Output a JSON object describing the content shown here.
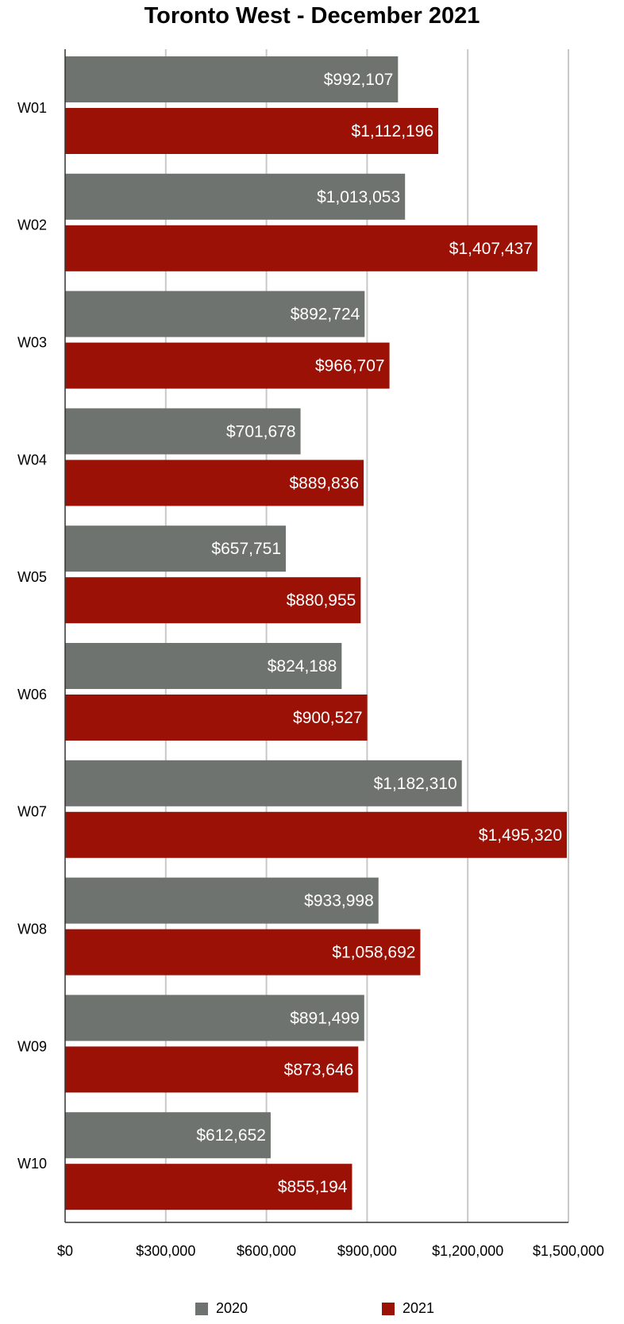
{
  "chart_data": {
    "type": "bar",
    "orientation": "horizontal",
    "title": "Toronto West - December 2021",
    "categories": [
      "W01",
      "W02",
      "W03",
      "W04",
      "W05",
      "W06",
      "W07",
      "W08",
      "W09",
      "W10"
    ],
    "series": [
      {
        "name": "2020",
        "color": "#6f7370",
        "values": [
          992107,
          1013053,
          892724,
          701678,
          657751,
          824188,
          1182310,
          933998,
          891499,
          612652
        ],
        "labels": [
          "$992,107",
          "$1,013,053",
          "$892,724",
          "$701,678",
          "$657,751",
          "$824,188",
          "$1,182,310",
          "$933,998",
          "$891,499",
          "$612,652"
        ]
      },
      {
        "name": "2021",
        "color": "#9b1106",
        "values": [
          1112196,
          1407437,
          966707,
          889836,
          880955,
          900527,
          1495320,
          1058692,
          873646,
          855194
        ],
        "labels": [
          "$1,112,196",
          "$1,407,437",
          "$966,707",
          "$889,836",
          "$880,955",
          "$900,527",
          "$1,495,320",
          "$1,058,692",
          "$873,646",
          "$855,194"
        ]
      }
    ],
    "xlim": [
      0,
      1500000
    ],
    "xticks": [
      0,
      300000,
      600000,
      900000,
      1200000,
      1500000
    ],
    "xtick_labels": [
      "$0",
      "$300,000",
      "$600,000",
      "$900,000",
      "$1,200,000",
      "$1,500,000"
    ],
    "grid": true,
    "legend": "bottom"
  }
}
